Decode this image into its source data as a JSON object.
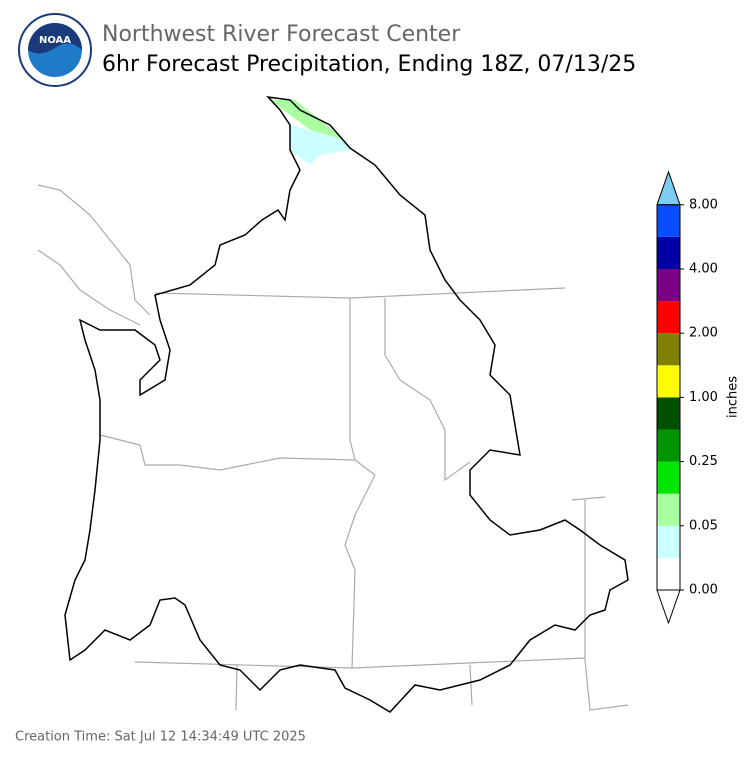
{
  "header": {
    "title": "Northwest River Forecast Center",
    "subtitle": "6hr Forecast Precipitation, Ending 18Z, 07/13/25"
  },
  "logo": {
    "text": "NOAA"
  },
  "colorbar": {
    "label": "inches",
    "ticks": [
      "0.00",
      "0.05",
      "0.25",
      "1.00",
      "2.00",
      "4.00",
      "8.00"
    ],
    "under_color": "#ffffff",
    "over_color": "#7dcdf0",
    "colors": [
      "#ffffff",
      "#ccffff",
      "#aaffa0",
      "#00e600",
      "#009500",
      "#005000",
      "#ffff00",
      "#808000",
      "#ff0000",
      "#7b0085",
      "#0000a6",
      "#0a4dff"
    ]
  },
  "footer": {
    "creation_time": "Creation Time: Sat Jul 12 14:34:49 UTC 2025"
  }
}
